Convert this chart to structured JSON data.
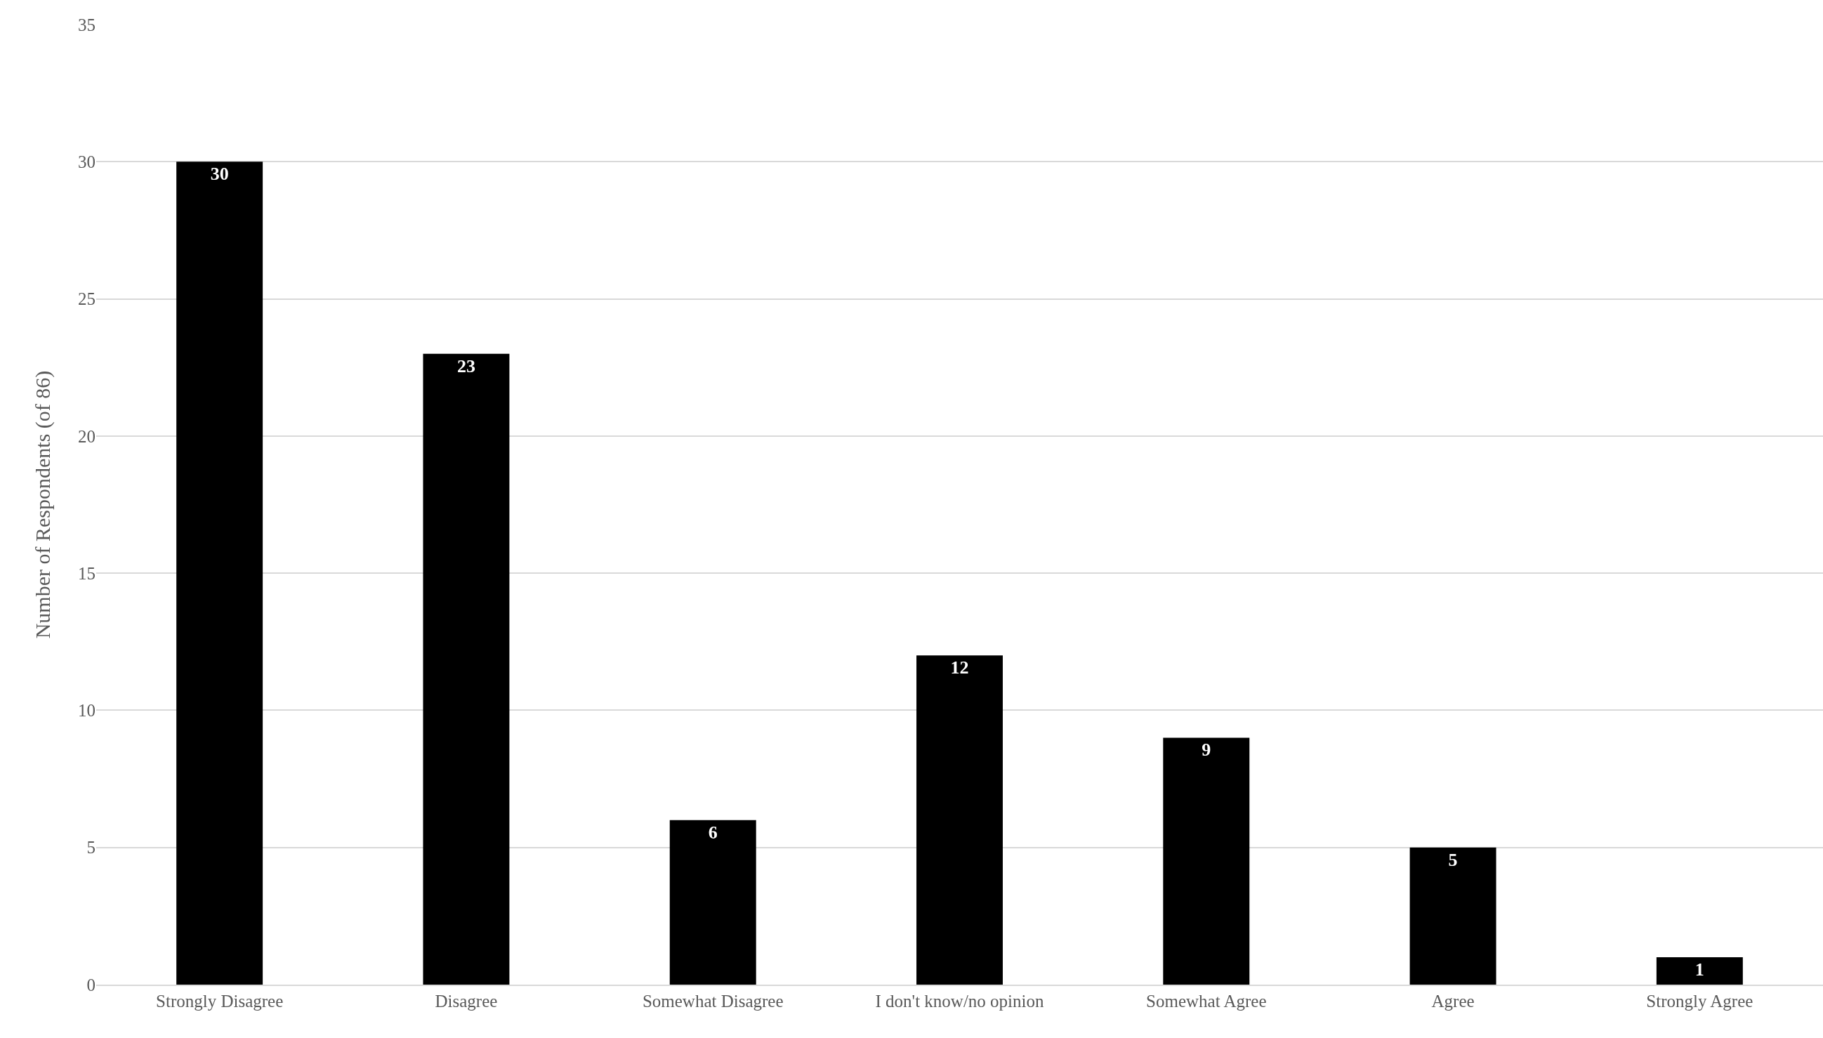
{
  "chart_data": {
    "type": "bar",
    "ylabel": "Number of Respondents (of 86)",
    "categories": [
      "Strongly Disagree",
      "Disagree",
      "Somewhat Disagree",
      "I don't know/no opinion",
      "Somewhat Agree",
      "Agree",
      "Strongly Agree"
    ],
    "values": [
      30,
      23,
      6,
      12,
      9,
      5,
      1
    ],
    "color": "#000000",
    "ylim": [
      0,
      35
    ],
    "yticks": [
      0,
      5,
      10,
      15,
      20,
      25,
      30,
      35
    ],
    "grid": "y",
    "data_labels": true
  }
}
